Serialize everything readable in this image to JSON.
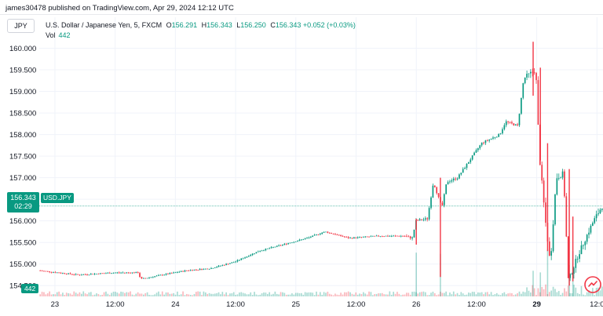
{
  "header": {
    "published_text": "james30478 published on TradingView.com, Apr 29, 2024 12:12 UTC"
  },
  "symbol_button": {
    "label": "JPY"
  },
  "legend": {
    "title": "U.S. Dollar / Japanese Yen, 5, FXCM",
    "open_label": "O",
    "open": "156.291",
    "high_label": "H",
    "high": "156.343",
    "low_label": "L",
    "low": "156.250",
    "close_label": "C",
    "close": "156.343",
    "change": "+0.052 (+0.03%)",
    "vol_label": "Vol",
    "vol": "442"
  },
  "price_tag": {
    "price": "156.343",
    "countdown": "02:29",
    "symbol": "USD.JPY"
  },
  "volume_tag": "442",
  "colors": {
    "up": "#089981",
    "down": "#f23645",
    "grid": "#f0f3fa",
    "text": "#131722"
  },
  "chart_data": {
    "type": "candlestick",
    "y_ticks": [
      "160.000",
      "159.500",
      "159.000",
      "158.500",
      "158.000",
      "157.500",
      "157.000",
      "156.500",
      "156.000",
      "155.500",
      "155.000",
      "154.500"
    ],
    "y_tick_values": [
      160.0,
      159.5,
      159.0,
      158.5,
      158.0,
      157.5,
      157.0,
      156.5,
      156.0,
      155.5,
      155.0,
      154.5
    ],
    "ylim": [
      154.25,
      160.3
    ],
    "x_ticks": [
      {
        "label": "23",
        "bold": false
      },
      {
        "label": "12:00",
        "bold": false
      },
      {
        "label": "24",
        "bold": false
      },
      {
        "label": "12:00",
        "bold": false
      },
      {
        "label": "25",
        "bold": false
      },
      {
        "label": "12:00",
        "bold": false
      },
      {
        "label": "26",
        "bold": false
      },
      {
        "label": "12:00",
        "bold": false
      },
      {
        "label": "29",
        "bold": true
      },
      {
        "label": "12:0",
        "bold": false
      }
    ],
    "x_tick_values": [
      0,
      0.5,
      1,
      1.5,
      2,
      2.5,
      3,
      3.5,
      4,
      4.5
    ],
    "xlim": [
      -0.13,
      4.55
    ],
    "last_price": 156.343,
    "price_path": [
      [
        -0.13,
        154.85
      ],
      [
        0.2,
        154.75
      ],
      [
        0.5,
        154.8
      ],
      [
        0.7,
        154.8
      ],
      [
        0.72,
        154.65
      ],
      [
        0.9,
        154.75
      ],
      [
        1.1,
        154.85
      ],
      [
        1.3,
        154.9
      ],
      [
        1.5,
        155.05
      ],
      [
        1.7,
        155.3
      ],
      [
        1.9,
        155.45
      ],
      [
        2.1,
        155.6
      ],
      [
        2.25,
        155.75
      ],
      [
        2.45,
        155.6
      ],
      [
        2.7,
        155.65
      ],
      [
        2.9,
        155.65
      ],
      [
        2.98,
        155.6
      ],
      [
        3.0,
        156.0
      ],
      [
        3.1,
        156.05
      ],
      [
        3.15,
        156.9
      ],
      [
        3.22,
        156.3
      ],
      [
        3.26,
        156.9
      ],
      [
        3.35,
        157.0
      ],
      [
        3.45,
        157.4
      ],
      [
        3.55,
        157.8
      ],
      [
        3.7,
        158.0
      ],
      [
        3.75,
        158.3
      ],
      [
        3.85,
        158.2
      ],
      [
        3.9,
        159.3
      ],
      [
        3.95,
        159.4
      ],
      [
        4.0,
        159.5
      ],
      [
        4.03,
        157.5
      ],
      [
        4.08,
        156.0
      ],
      [
        4.12,
        155.0
      ],
      [
        4.17,
        157.0
      ],
      [
        4.23,
        157.1
      ],
      [
        4.27,
        154.6
      ],
      [
        4.35,
        155.2
      ],
      [
        4.43,
        155.7
      ],
      [
        4.48,
        156.0
      ],
      [
        4.55,
        156.343
      ]
    ],
    "spikes": [
      [
        3.0,
        155.45,
        156.05
      ],
      [
        3.2,
        154.7,
        157.0
      ],
      [
        3.97,
        158.9,
        160.15
      ],
      [
        4.03,
        157.4,
        159.55
      ],
      [
        4.09,
        155.3,
        157.8
      ],
      [
        4.27,
        154.5,
        157.2
      ],
      [
        4.3,
        154.6,
        156.1
      ]
    ]
  }
}
